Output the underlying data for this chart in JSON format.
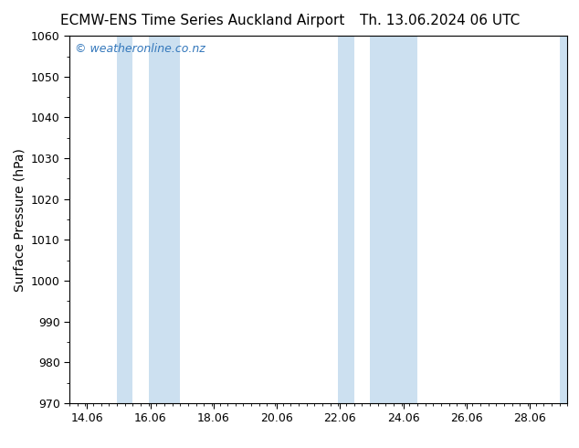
{
  "title_left": "ECMW-ENS Time Series Auckland Airport",
  "title_right": "Th. 13.06.2024 06 UTC",
  "ylabel": "Surface Pressure (hPa)",
  "ylim": [
    970,
    1060
  ],
  "yticks": [
    970,
    980,
    990,
    1000,
    1010,
    1020,
    1030,
    1040,
    1050,
    1060
  ],
  "xlim": [
    13.5,
    29.25
  ],
  "xticks": [
    14.06,
    16.06,
    18.06,
    20.06,
    22.06,
    24.06,
    26.06,
    28.06
  ],
  "xtick_labels": [
    "14.06",
    "16.06",
    "18.06",
    "20.06",
    "22.06",
    "24.06",
    "26.06",
    "28.06"
  ],
  "shaded_bands": [
    {
      "xmin": 15.0,
      "xmax": 15.5
    },
    {
      "xmin": 16.0,
      "xmax": 17.0
    },
    {
      "xmin": 22.0,
      "xmax": 22.5
    },
    {
      "xmin": 23.0,
      "xmax": 24.5
    },
    {
      "xmin": 29.0,
      "xmax": 29.25
    }
  ],
  "band_color": "#cce0f0",
  "background_color": "#ffffff",
  "watermark": "© weatheronline.co.nz",
  "watermark_color": "#3377bb",
  "watermark_fontsize": 9,
  "title_fontsize": 11,
  "ylabel_fontsize": 10,
  "tick_fontsize": 9
}
